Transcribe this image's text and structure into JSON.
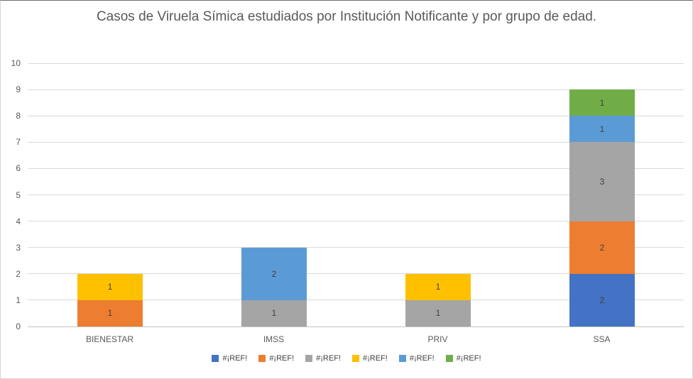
{
  "chart_data": {
    "type": "bar",
    "stacked": true,
    "title": "Casos de Viruela Símica estudiados por Institución Notificante y por grupo de edad.",
    "categories": [
      "BIENESTAR",
      "IMSS",
      "PRIV",
      "SSA"
    ],
    "series": [
      {
        "name": "#¡REF!",
        "color": "#4472C4",
        "values": [
          0,
          0,
          0,
          2
        ]
      },
      {
        "name": "#¡REF!",
        "color": "#ED7D31",
        "values": [
          1,
          0,
          0,
          2
        ]
      },
      {
        "name": "#¡REF!",
        "color": "#A5A5A5",
        "values": [
          0,
          1,
          1,
          3
        ]
      },
      {
        "name": "#¡REF!",
        "color": "#FFC000",
        "values": [
          1,
          0,
          1,
          0
        ]
      },
      {
        "name": "#¡REF!",
        "color": "#5B9BD5",
        "values": [
          0,
          2,
          0,
          1
        ]
      },
      {
        "name": "#¡REF!",
        "color": "#70AD47",
        "values": [
          0,
          0,
          0,
          1
        ]
      }
    ],
    "totals": {
      "BIENESTAR": 2,
      "IMSS": 3,
      "PRIV": 2,
      "SSA": 9
    },
    "xlabel": "",
    "ylabel": "",
    "ylim": [
      0,
      10
    ],
    "ytick_step": 1,
    "yticks": [
      0,
      1,
      2,
      3,
      4,
      5,
      6,
      7,
      8,
      9,
      10
    ],
    "gridlines": true,
    "data_labels": true,
    "legend_position": "bottom",
    "colors": {
      "gridline": "#d9d9d9",
      "axis_line": "#c3c3c3",
      "axis_text": "#595959",
      "title_text": "#595959",
      "data_label_text": "#404040"
    }
  }
}
